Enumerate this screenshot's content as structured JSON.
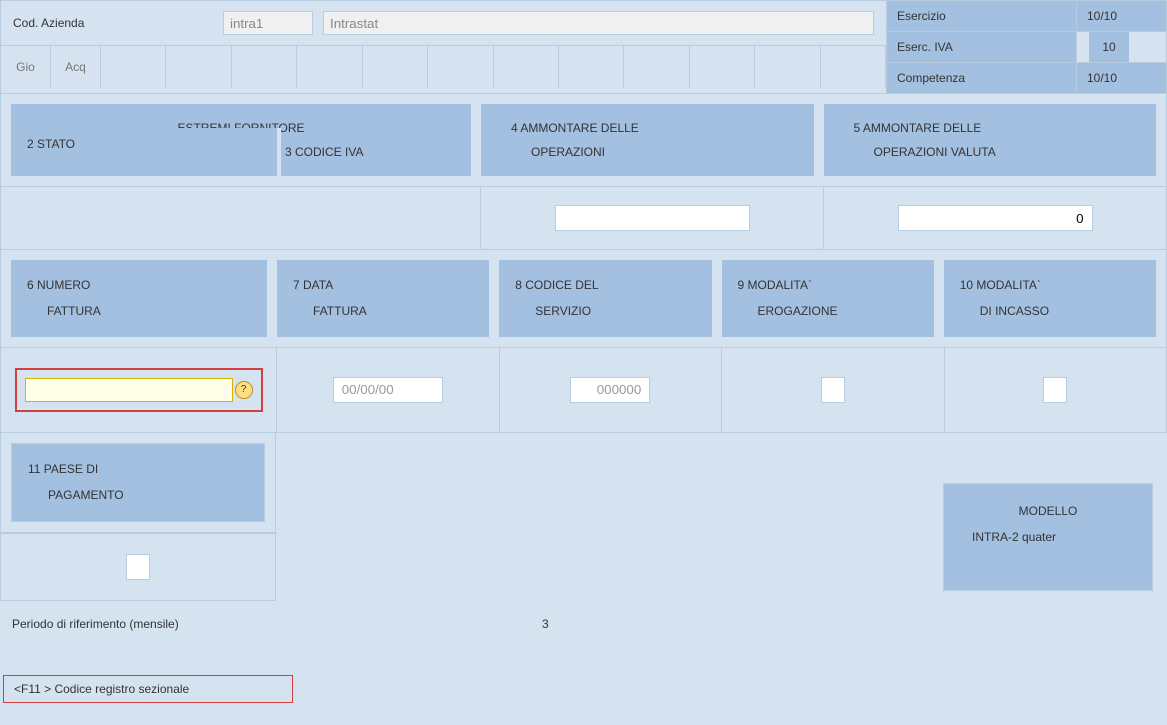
{
  "top": {
    "cod_azienda_label": "Cod. Azienda",
    "intra1_value": "intra1",
    "intrastat_value": "Intrastat",
    "tabs": [
      "Gio",
      "Acq"
    ]
  },
  "right_panel": {
    "esercizio_label": "Esercizio",
    "esercizio_value": "10/10",
    "eserc_iva_label": "Eserc. IVA",
    "eserc_iva_value": "10",
    "competenza_label": "Competenza",
    "competenza_value": "10/10"
  },
  "headers1": {
    "fornitore_title": "ESTREMI FORNITORE",
    "stato": "2 STATO",
    "codice_iva": "3 CODICE IVA",
    "ammontare4_l1": "4 AMMONTARE DELLE",
    "ammontare4_l2": "OPERAZIONI",
    "ammontare5_l1": "5 AMMONTARE DELLE",
    "ammontare5_l2": "OPERAZIONI VALUTA"
  },
  "row1_values": {
    "valuta_value": "0"
  },
  "headers2": {
    "h6_l1": "6 NUMERO",
    "h6_l2": "FATTURA",
    "h7_l1": "7 DATA",
    "h7_l2": "FATTURA",
    "h8_l1": "8 CODICE DEL",
    "h8_l2": "SERVIZIO",
    "h9_l1": "9 MODALITA`",
    "h9_l2": "EROGAZIONE",
    "h10_l1": "10 MODALITA`",
    "h10_l2": "DI INCASSO"
  },
  "row2_values": {
    "numero_fattura": "",
    "data_fattura": "00/00/00",
    "codice_servizio": "000000",
    "modalita_erogazione": "",
    "modalita_incasso": ""
  },
  "headers3": {
    "h11_l1": "11 PAESE DI",
    "h11_l2": "PAGAMENTO"
  },
  "modello": {
    "title": "MODELLO",
    "value": "INTRA-2 quater"
  },
  "periodo": {
    "label": "Periodo di riferimento (mensile)",
    "value": "3"
  },
  "footer": {
    "hint": "<F11           > Codice registro sezionale"
  }
}
